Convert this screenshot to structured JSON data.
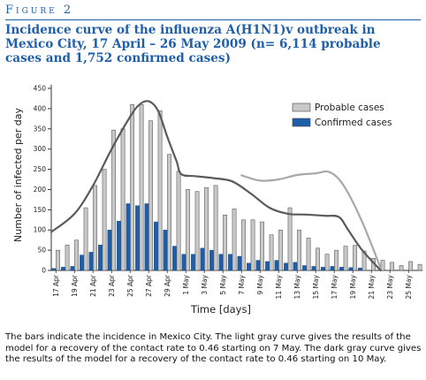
{
  "figure_label": "Figure 2",
  "title": "Incidence curve of the influenza A(H1N1)v outbreak in\nMexico City, 17 April – 26 May 2009 (n= 6,114 probable\ncases and 1,752 confirmed cases)",
  "caption": "The bars indicate the incidence in Mexico City. The light gray curve gives the results of the model for a recovery of the contact rate to 0.46 starting on 7 May. The dark gray curve gives the results of the model for a recovery of the contact rate to 0.46 starting on 10 May.",
  "chart_data": {
    "type": "bar",
    "xlabel": "Time [days]",
    "ylabel": "Number of infected per day",
    "ylim": [
      0,
      450
    ],
    "y_ticks": [
      0,
      50,
      100,
      150,
      200,
      250,
      300,
      350,
      400,
      450
    ],
    "grid": false,
    "legend_position": "top-right",
    "x_tick_labels": [
      "17 Apr",
      "19 Apr",
      "21 Apr",
      "23 Apr",
      "25 Apr",
      "27 Apr",
      "29 Apr",
      "1 May",
      "3 May",
      "5 May",
      "7 May",
      "9 May",
      "11 May",
      "13 May",
      "15 May",
      "17 May",
      "19 May",
      "21 May",
      "23 May",
      "25 May"
    ],
    "categories": [
      "17 Apr",
      "18 Apr",
      "19 Apr",
      "20 Apr",
      "21 Apr",
      "22 Apr",
      "23 Apr",
      "24 Apr",
      "25 Apr",
      "26 Apr",
      "27 Apr",
      "28 Apr",
      "29 Apr",
      "30 Apr",
      "1 May",
      "2 May",
      "3 May",
      "4 May",
      "5 May",
      "6 May",
      "7 May",
      "8 May",
      "9 May",
      "10 May",
      "11 May",
      "12 May",
      "13 May",
      "14 May",
      "15 May",
      "16 May",
      "17 May",
      "18 May",
      "19 May",
      "20 May",
      "21 May",
      "22 May",
      "23 May",
      "24 May",
      "25 May",
      "26 May"
    ],
    "series": [
      {
        "name": "Probable cases",
        "color": "#c8c8c8",
        "values": [
          50,
          63,
          75,
          155,
          210,
          250,
          347,
          350,
          410,
          410,
          370,
          395,
          287,
          245,
          200,
          195,
          205,
          210,
          137,
          152,
          125,
          125,
          120,
          88,
          100,
          155,
          100,
          80,
          55,
          40,
          50,
          60,
          62,
          48,
          30,
          25,
          20,
          12,
          22,
          15
        ]
      },
      {
        "name": "Confirmed cases",
        "color": "#1f5ea8",
        "values": [
          5,
          8,
          10,
          38,
          45,
          63,
          100,
          122,
          165,
          160,
          165,
          120,
          100,
          60,
          40,
          40,
          55,
          50,
          40,
          40,
          35,
          18,
          25,
          22,
          25,
          18,
          20,
          12,
          10,
          8,
          10,
          8,
          7,
          6,
          0,
          0,
          0,
          0,
          0,
          0
        ]
      }
    ],
    "curves": [
      {
        "id": "light-gray-curve",
        "color": "#a8a8a8",
        "points": [
          [
            20,
            235
          ],
          [
            22,
            222
          ],
          [
            24,
            225
          ],
          [
            26,
            236
          ],
          [
            28,
            240
          ],
          [
            29.5,
            243
          ],
          [
            31,
            210
          ],
          [
            33,
            120
          ],
          [
            35,
            5
          ]
        ]
      },
      {
        "id": "dark-gray-curve",
        "color": "#5a5a5a",
        "points": [
          [
            -0.5,
            95
          ],
          [
            2,
            140
          ],
          [
            4,
            210
          ],
          [
            6,
            300
          ],
          [
            8,
            380
          ],
          [
            9,
            410
          ],
          [
            10,
            418
          ],
          [
            11,
            395
          ],
          [
            12,
            330
          ],
          [
            13,
            270
          ],
          [
            13.5,
            238
          ],
          [
            15,
            233
          ],
          [
            17,
            228
          ],
          [
            19,
            220
          ],
          [
            21,
            190
          ],
          [
            23,
            155
          ],
          [
            25,
            140
          ],
          [
            27,
            138
          ],
          [
            29,
            135
          ],
          [
            30.5,
            132
          ],
          [
            31.5,
            100
          ],
          [
            33,
            50
          ],
          [
            35,
            0
          ]
        ]
      }
    ]
  }
}
